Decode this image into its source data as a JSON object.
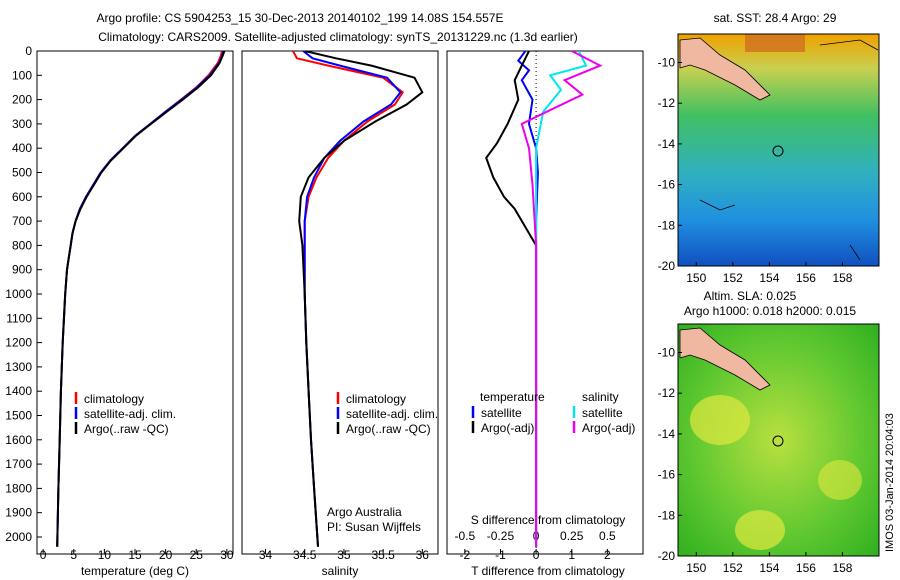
{
  "header": {
    "title_line1": "Argo profile: CS 5904253_15 30-Dec-2013 20140102_199 14.08S 154.557E",
    "title_line2": "Climatology: CARS2009. Satellite-adjusted climatology: synTS_20131229.nc (1.3d earlier)"
  },
  "side_text": "IMOS 03-Jan-2014 20:04:03",
  "colors": {
    "climatology": "#ff0000",
    "satellite": "#0000ff",
    "argo": "#000000",
    "salinity_satellite": "#00e5ee",
    "salinity_argo": "#ee00ee"
  },
  "chart_data": [
    {
      "type": "line",
      "id": "temperature",
      "xlabel": "temperature (deg C)",
      "ylabel": "",
      "xlim": [
        -1,
        31
      ],
      "ylim": [
        2070,
        0
      ],
      "xticks": [
        0,
        5,
        10,
        15,
        20,
        25,
        30
      ],
      "yticks": [
        0,
        100,
        200,
        300,
        400,
        500,
        600,
        700,
        800,
        900,
        1000,
        1100,
        1200,
        1300,
        1400,
        1500,
        1600,
        1700,
        1800,
        1900,
        2000
      ],
      "legend": [
        "climatology",
        "satellite-adj. clim.",
        "Argo(..raw -QC)"
      ],
      "series": [
        {
          "name": "climatology",
          "x": [
            29.2,
            29.0,
            28.5,
            27.0,
            25.0,
            22.5,
            20.0,
            17.5,
            15.0,
            13.0,
            11.0,
            9.5,
            8.3,
            7.0,
            6.0,
            5.3,
            4.8,
            4.5,
            4.2,
            3.9,
            3.6,
            3.2,
            2.9,
            2.7,
            2.5,
            2.3
          ],
          "y": [
            0,
            20,
            50,
            100,
            150,
            200,
            250,
            300,
            350,
            400,
            450,
            500,
            550,
            600,
            650,
            700,
            750,
            800,
            850,
            900,
            1000,
            1200,
            1400,
            1600,
            1800,
            2040
          ]
        },
        {
          "name": "satellite-adj. clim.",
          "x": [
            29.4,
            29.2,
            28.7,
            27.2,
            25.1,
            22.6,
            20.0,
            17.5,
            15.0,
            13.0,
            11.0,
            9.4,
            8.2,
            7.0,
            6.0,
            5.3,
            4.8,
            4.5,
            4.2,
            3.9,
            3.6,
            3.2,
            2.9,
            2.7,
            2.5,
            2.3
          ],
          "y": [
            0,
            20,
            50,
            100,
            150,
            200,
            250,
            300,
            350,
            400,
            450,
            500,
            550,
            600,
            650,
            700,
            750,
            800,
            850,
            900,
            1000,
            1200,
            1400,
            1600,
            1800,
            2040
          ]
        },
        {
          "name": "Argo(..raw -QC)",
          "x": [
            29.6,
            29.3,
            28.8,
            27.4,
            25.3,
            22.8,
            20.2,
            17.6,
            15.1,
            13.1,
            11.1,
            9.5,
            8.3,
            7.1,
            6.1,
            5.3,
            4.8,
            4.5,
            4.2,
            3.9,
            3.6,
            3.2,
            2.9,
            2.7,
            2.5,
            2.3
          ],
          "y": [
            0,
            20,
            50,
            100,
            150,
            200,
            250,
            300,
            350,
            400,
            450,
            500,
            550,
            600,
            650,
            700,
            750,
            800,
            850,
            900,
            1000,
            1200,
            1400,
            1600,
            1800,
            2040
          ]
        }
      ]
    },
    {
      "type": "line",
      "id": "salinity",
      "xlabel": "salinity",
      "xlim": [
        33.7,
        36.2
      ],
      "ylim": [
        2070,
        0
      ],
      "xticks": [
        34,
        34.5,
        35,
        35.5,
        36
      ],
      "legend": [
        "climatology",
        "satellite-adj. clim.",
        "Argo(..raw -QC)"
      ],
      "annotation": [
        "Argo Australia",
        "PI: Susan Wijffels"
      ],
      "series": [
        {
          "name": "climatology",
          "x": [
            34.35,
            34.4,
            34.8,
            35.5,
            35.75,
            35.65,
            35.3,
            35.0,
            34.8,
            34.65,
            34.55,
            34.5,
            34.5,
            34.5,
            34.52,
            34.55,
            34.58,
            34.62,
            34.67
          ],
          "y": [
            0,
            30,
            60,
            110,
            170,
            220,
            290,
            370,
            440,
            520,
            600,
            700,
            800,
            1000,
            1200,
            1400,
            1600,
            1800,
            2040
          ]
        },
        {
          "name": "satellite-adj. clim.",
          "x": [
            34.48,
            34.6,
            34.95,
            35.55,
            35.72,
            35.6,
            35.25,
            34.95,
            34.75,
            34.62,
            34.53,
            34.5,
            34.5,
            34.5,
            34.52,
            34.55,
            34.58,
            34.62,
            34.67
          ],
          "y": [
            0,
            30,
            60,
            110,
            170,
            220,
            290,
            370,
            440,
            520,
            600,
            700,
            800,
            1000,
            1200,
            1400,
            1600,
            1800,
            2040
          ]
        },
        {
          "name": "Argo(..raw -QC)",
          "x": [
            34.5,
            34.9,
            35.35,
            35.9,
            36.0,
            35.8,
            35.4,
            35.0,
            34.75,
            34.55,
            34.45,
            34.43,
            34.47,
            34.5,
            34.52,
            34.55,
            34.58,
            34.62,
            34.67
          ],
          "y": [
            0,
            30,
            60,
            110,
            170,
            220,
            290,
            370,
            440,
            520,
            600,
            700,
            800,
            1000,
            1200,
            1400,
            1600,
            1800,
            2040
          ]
        }
      ]
    },
    {
      "type": "line",
      "id": "difference",
      "xlabel": "T difference from climatology",
      "xlabel_top": "S difference from climatology",
      "xlim": [
        -2.5,
        3
      ],
      "ylim": [
        2070,
        0
      ],
      "xticks": [
        -2,
        -1,
        0,
        1,
        2
      ],
      "xticks_top_labels": [
        "-0.5",
        "-0.25",
        "0",
        "0.25",
        "0.5"
      ],
      "xticks_top_values": [
        -2,
        -1,
        0,
        1,
        2
      ],
      "legend_temperature_title": "temperature",
      "legend_salinity_title": "salinity",
      "legend_temperature": [
        "satellite",
        "Argo(-adj)"
      ],
      "legend_salinity": [
        "satellite",
        "Argo(-adj)"
      ],
      "series": [
        {
          "name": "temperature satellite",
          "x": [
            -0.3,
            -0.5,
            -0.2,
            -0.4,
            -0.1,
            -0.2,
            0.0,
            0.05,
            0.0,
            0.0,
            0.0,
            0.0
          ],
          "y": [
            0,
            40,
            80,
            120,
            200,
            300,
            400,
            500,
            700,
            1000,
            1500,
            2040
          ]
        },
        {
          "name": "temperature Argo(-adj)",
          "x": [
            -0.2,
            -0.4,
            -0.6,
            -0.5,
            -0.8,
            -1.1,
            -1.4,
            -1.2,
            -0.9,
            -0.6,
            0.0,
            0.0,
            0.0
          ],
          "y": [
            0,
            60,
            120,
            200,
            300,
            380,
            440,
            520,
            600,
            650,
            800,
            1500,
            2040
          ]
        },
        {
          "name": "salinity satellite",
          "x": [
            1.2,
            1.4,
            0.4,
            0.7,
            0.2,
            0.0,
            0.0,
            0.0,
            0.0
          ],
          "y": [
            0,
            60,
            100,
            160,
            250,
            400,
            700,
            1500,
            2040
          ]
        },
        {
          "name": "salinity Argo(-adj)",
          "x": [
            1.0,
            1.8,
            0.8,
            1.3,
            0.3,
            -0.4,
            -0.2,
            -0.1,
            0.0,
            0.0
          ],
          "y": [
            0,
            60,
            120,
            180,
            250,
            300,
            400,
            550,
            800,
            2040
          ]
        }
      ]
    },
    {
      "type": "heatmap",
      "id": "sst_map",
      "title": "sat. SST: 28.4 Argo: 29",
      "xticks": [
        150,
        152,
        154,
        156,
        158
      ],
      "yticks": [
        -10,
        -12,
        -14,
        -16,
        -18,
        -20
      ],
      "xlim": [
        149,
        160
      ],
      "ylim": [
        -20,
        -8.6
      ],
      "marker": {
        "lon": 154.557,
        "lat": -14.08
      }
    },
    {
      "type": "heatmap",
      "id": "sla_map",
      "title": "Altim. SLA: 0.025",
      "subtitle": "Argo h1000: 0.018 h2000: 0.015",
      "xticks": [
        150,
        152,
        154,
        156,
        158
      ],
      "yticks": [
        -10,
        -12,
        -14,
        -16,
        -18,
        -20
      ],
      "xlim": [
        149,
        160
      ],
      "ylim": [
        -20,
        -8.6
      ],
      "marker": {
        "lon": 154.557,
        "lat": -14.08
      }
    }
  ]
}
